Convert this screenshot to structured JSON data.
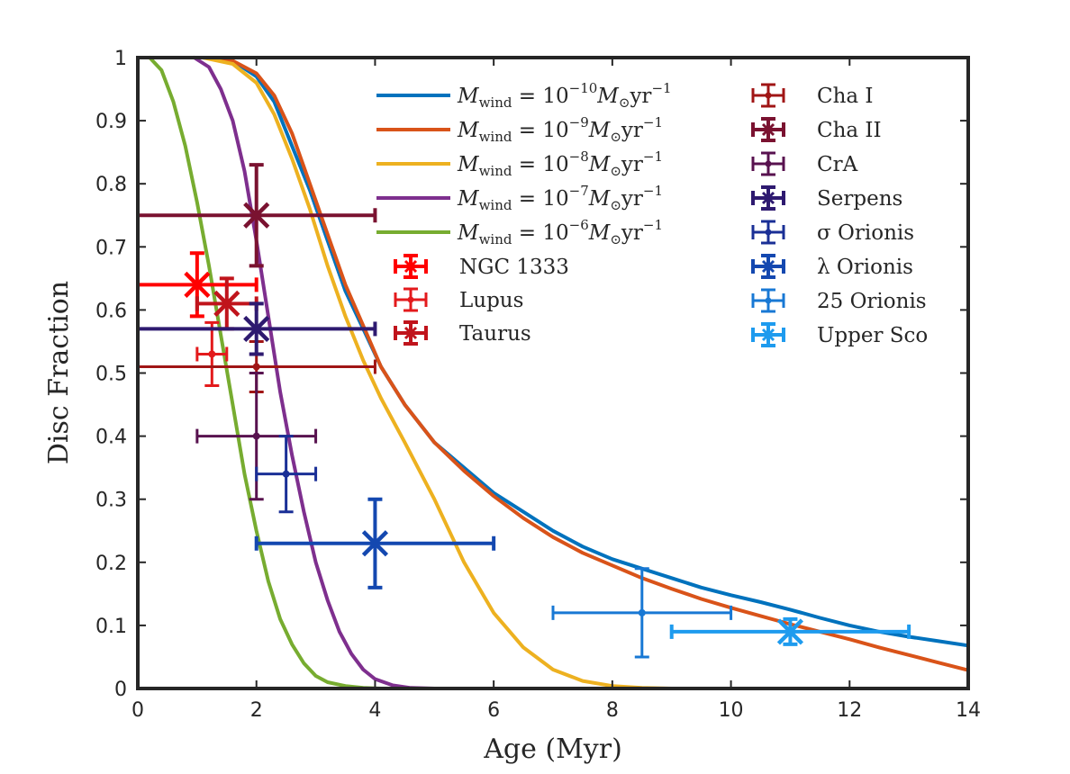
{
  "chart_data": {
    "type": "line",
    "title": "",
    "xlabel": "Age (Myr)",
    "ylabel": "Disc Fraction",
    "xlim": [
      0,
      14
    ],
    "ylim": [
      0,
      1
    ],
    "xticks": [
      0,
      2,
      4,
      6,
      8,
      10,
      12,
      14
    ],
    "yticks": [
      0,
      0.1,
      0.2,
      0.3,
      0.4,
      0.5,
      0.6,
      0.7,
      0.8,
      0.9,
      1
    ],
    "xtick_labels": [
      "0",
      "2",
      "4",
      "6",
      "8",
      "10",
      "12",
      "14"
    ],
    "ytick_labels": [
      "0",
      "0.1",
      "0.2",
      "0.3",
      "0.4",
      "0.5",
      "0.6",
      "0.7",
      "0.8",
      "0.9",
      "1"
    ],
    "grid": false,
    "series": [
      {
        "name": "M_wind = 10^-10 M_sun yr^-1",
        "label_exp": "−10",
        "color": "#0072bd",
        "x": [
          1.1,
          1.6,
          2.0,
          2.3,
          2.6,
          2.9,
          3.2,
          3.5,
          3.8,
          4.1,
          4.5,
          5.0,
          5.5,
          6.0,
          6.5,
          7.0,
          7.5,
          8.0,
          8.5,
          9.0,
          9.5,
          10.0,
          10.5,
          11.0,
          11.5,
          12.0,
          12.5,
          13.0,
          13.5,
          14.0
        ],
        "y": [
          1.0,
          0.995,
          0.97,
          0.93,
          0.86,
          0.79,
          0.71,
          0.63,
          0.57,
          0.51,
          0.45,
          0.39,
          0.35,
          0.31,
          0.28,
          0.25,
          0.225,
          0.205,
          0.19,
          0.175,
          0.16,
          0.148,
          0.137,
          0.125,
          0.112,
          0.1,
          0.09,
          0.082,
          0.075,
          0.068
        ]
      },
      {
        "name": "M_wind = 10^-9 M_sun yr^-1",
        "label_exp": "−9",
        "color": "#d95319",
        "x": [
          1.1,
          1.6,
          2.0,
          2.3,
          2.6,
          2.9,
          3.2,
          3.5,
          3.8,
          4.1,
          4.5,
          5.0,
          5.5,
          6.0,
          6.5,
          7.0,
          7.5,
          8.0,
          8.5,
          9.0,
          9.5,
          10.0,
          10.5,
          11.0,
          11.5,
          12.0,
          12.5,
          13.0,
          13.5,
          14.0
        ],
        "y": [
          1.0,
          0.995,
          0.975,
          0.94,
          0.88,
          0.8,
          0.72,
          0.64,
          0.575,
          0.51,
          0.45,
          0.39,
          0.345,
          0.305,
          0.27,
          0.24,
          0.215,
          0.195,
          0.175,
          0.158,
          0.142,
          0.128,
          0.115,
          0.102,
          0.09,
          0.078,
          0.065,
          0.053,
          0.041,
          0.029
        ]
      },
      {
        "name": "M_wind = 10^-8 M_sun yr^-1",
        "label_exp": "−8",
        "color": "#edb120",
        "x": [
          1.1,
          1.6,
          2.0,
          2.3,
          2.6,
          2.9,
          3.2,
          3.5,
          3.8,
          4.1,
          4.5,
          5.0,
          5.5,
          6.0,
          6.5,
          7.0,
          7.5,
          8.0,
          8.5,
          9.0,
          9.35
        ],
        "y": [
          1.0,
          0.99,
          0.96,
          0.91,
          0.84,
          0.76,
          0.67,
          0.59,
          0.52,
          0.46,
          0.39,
          0.3,
          0.2,
          0.12,
          0.065,
          0.03,
          0.012,
          0.004,
          0.001,
          0.0,
          0.0
        ]
      },
      {
        "name": "M_wind = 10^-7 M_sun yr^-1",
        "label_exp": "−7",
        "color": "#7e2f8e",
        "x": [
          0.95,
          1.2,
          1.4,
          1.6,
          1.8,
          2.0,
          2.2,
          2.4,
          2.6,
          2.8,
          3.0,
          3.2,
          3.4,
          3.6,
          3.8,
          4.0,
          4.3,
          4.6,
          5.0,
          5.25
        ],
        "y": [
          1.0,
          0.985,
          0.95,
          0.9,
          0.82,
          0.71,
          0.59,
          0.47,
          0.37,
          0.28,
          0.2,
          0.14,
          0.09,
          0.055,
          0.03,
          0.015,
          0.005,
          0.001,
          0.0,
          0.0
        ]
      },
      {
        "name": "M_wind = 10^-6 M_sun yr^-1",
        "label_exp": "−6",
        "color": "#77ac30",
        "x": [
          0.2,
          0.4,
          0.6,
          0.8,
          1.0,
          1.2,
          1.4,
          1.6,
          1.8,
          2.0,
          2.2,
          2.4,
          2.6,
          2.8,
          3.0,
          3.2,
          3.5,
          3.8,
          4.1,
          4.35
        ],
        "y": [
          1.0,
          0.98,
          0.93,
          0.86,
          0.77,
          0.67,
          0.56,
          0.45,
          0.34,
          0.25,
          0.17,
          0.11,
          0.07,
          0.04,
          0.02,
          0.01,
          0.004,
          0.001,
          0.0,
          0.0
        ]
      }
    ],
    "clusters": [
      {
        "name": "NGC 1333",
        "x": 1.0,
        "y": 0.64,
        "xerr": [
          1.0,
          1.0
        ],
        "yerr": [
          0.05,
          0.05
        ],
        "color": "#ff0000",
        "marker": "x"
      },
      {
        "name": "Lupus",
        "x": 1.25,
        "y": 0.53,
        "xerr": [
          0.25,
          0.25
        ],
        "yerr": [
          0.05,
          0.05
        ],
        "color": "#e31a1c",
        "marker": "dot"
      },
      {
        "name": "Taurus",
        "x": 1.5,
        "y": 0.61,
        "xerr": [
          0.5,
          0.5
        ],
        "yerr": [
          0.04,
          0.04
        ],
        "color": "#c0141c",
        "marker": "x"
      },
      {
        "name": "Cha I",
        "x": 2.0,
        "y": 0.51,
        "xerr": [
          2.0,
          2.0
        ],
        "yerr": [
          0.04,
          0.04
        ],
        "color": "#a01515",
        "marker": "dot"
      },
      {
        "name": "Cha II",
        "x": 2.0,
        "y": 0.75,
        "xerr": [
          2.0,
          2.0
        ],
        "yerr": [
          0.08,
          0.08
        ],
        "color": "#7a1230",
        "marker": "x"
      },
      {
        "name": "CrA",
        "x": 2.0,
        "y": 0.4,
        "xerr": [
          1.0,
          1.0
        ],
        "yerr": [
          0.1,
          0.1
        ],
        "color": "#58124f",
        "marker": "dot"
      },
      {
        "name": "Serpens",
        "x": 2.0,
        "y": 0.57,
        "xerr": [
          2.0,
          2.0
        ],
        "yerr": [
          0.04,
          0.04
        ],
        "color": "#2e1a70",
        "marker": "x"
      },
      {
        "name": "σ Orionis",
        "x": 2.5,
        "y": 0.34,
        "xerr": [
          0.5,
          0.5
        ],
        "yerr": [
          0.06,
          0.06
        ],
        "color": "#1a2f96",
        "marker": "dot"
      },
      {
        "name": "λ Orionis",
        "x": 4.0,
        "y": 0.23,
        "xerr": [
          2.0,
          2.0
        ],
        "yerr": [
          0.07,
          0.07
        ],
        "color": "#1448b0",
        "marker": "x"
      },
      {
        "name": "25 Orionis",
        "x": 8.5,
        "y": 0.12,
        "xerr": [
          1.5,
          1.5
        ],
        "yerr": [
          0.07,
          0.07
        ],
        "color": "#1878d4",
        "marker": "dot"
      },
      {
        "name": "Upper Sco",
        "x": 11.0,
        "y": 0.09,
        "xerr": [
          2.0,
          2.0
        ],
        "yerr": [
          0.02,
          0.02
        ],
        "color": "#1e9bee",
        "marker": "x"
      }
    ],
    "legend": {
      "placement": "top-right",
      "line_labels_prefix": "M",
      "line_labels_sub": "wind",
      "line_labels_mid": " = 10",
      "line_labels_unit": "M",
      "line_labels_unit_sub": "⊙",
      "line_labels_tail": "yr",
      "line_labels_tail_exp": "−1"
    }
  }
}
